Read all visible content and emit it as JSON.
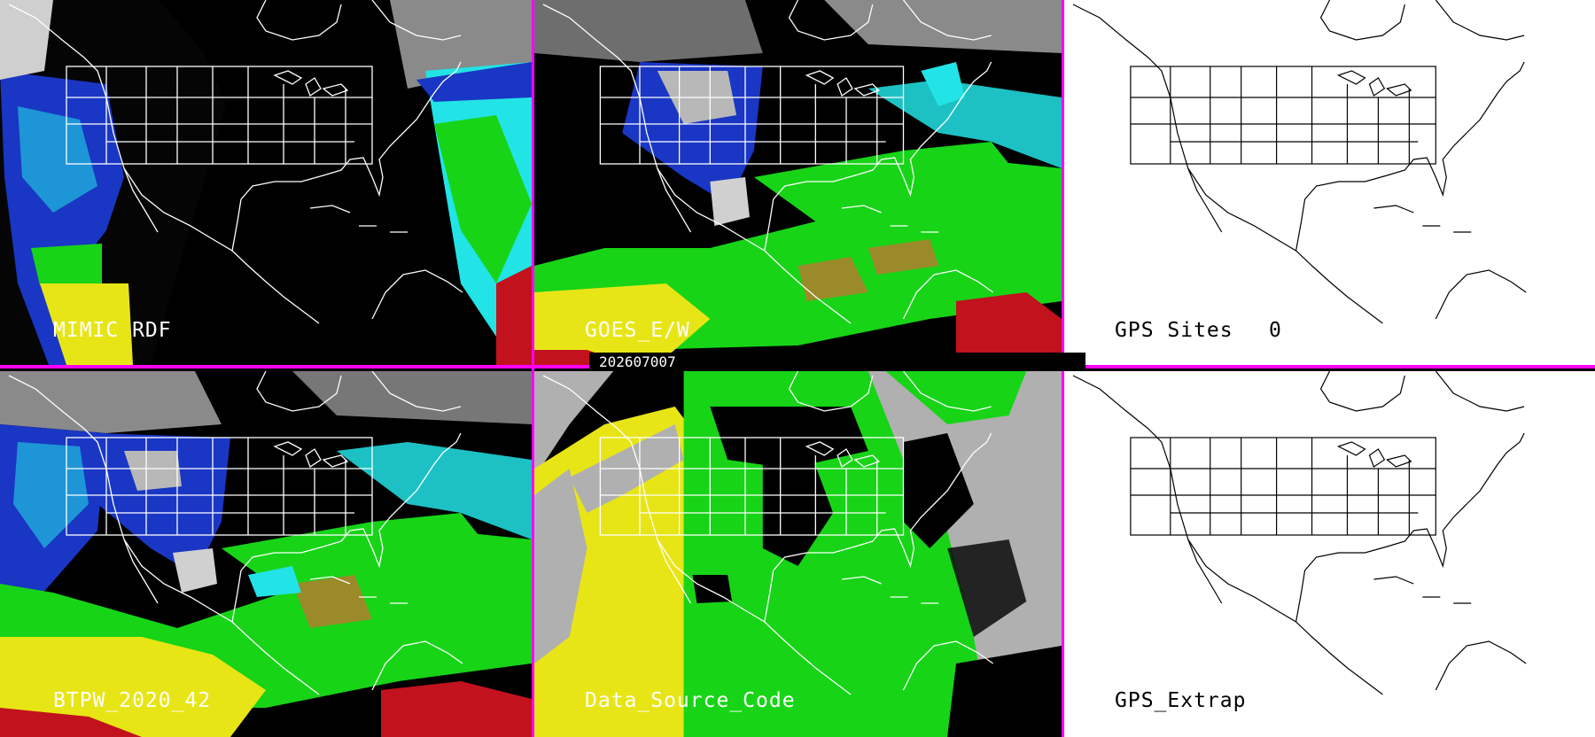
{
  "panels": [
    {
      "id": "mimic",
      "label": "MIMIC RDF"
    },
    {
      "id": "goes",
      "label": "GOES_E/W"
    },
    {
      "id": "gps_sites",
      "label": "GPS Sites",
      "count": "0"
    },
    {
      "id": "btpw",
      "label": "BTPW_2020_42"
    },
    {
      "id": "dsc",
      "label": "Data_Source_Code"
    },
    {
      "id": "gps_extrap",
      "label": "GPS_Extrap"
    }
  ],
  "timestamp": "202607007",
  "colors": {
    "divider": "#ff00ff",
    "dry": "#1a36c4",
    "moist_cyan": "#22e3e6",
    "moist_green": "#17d417",
    "wet_yellow": "#e8e517",
    "very_wet_red": "#c1121e",
    "cloud_gray": "#b0b0b0"
  }
}
